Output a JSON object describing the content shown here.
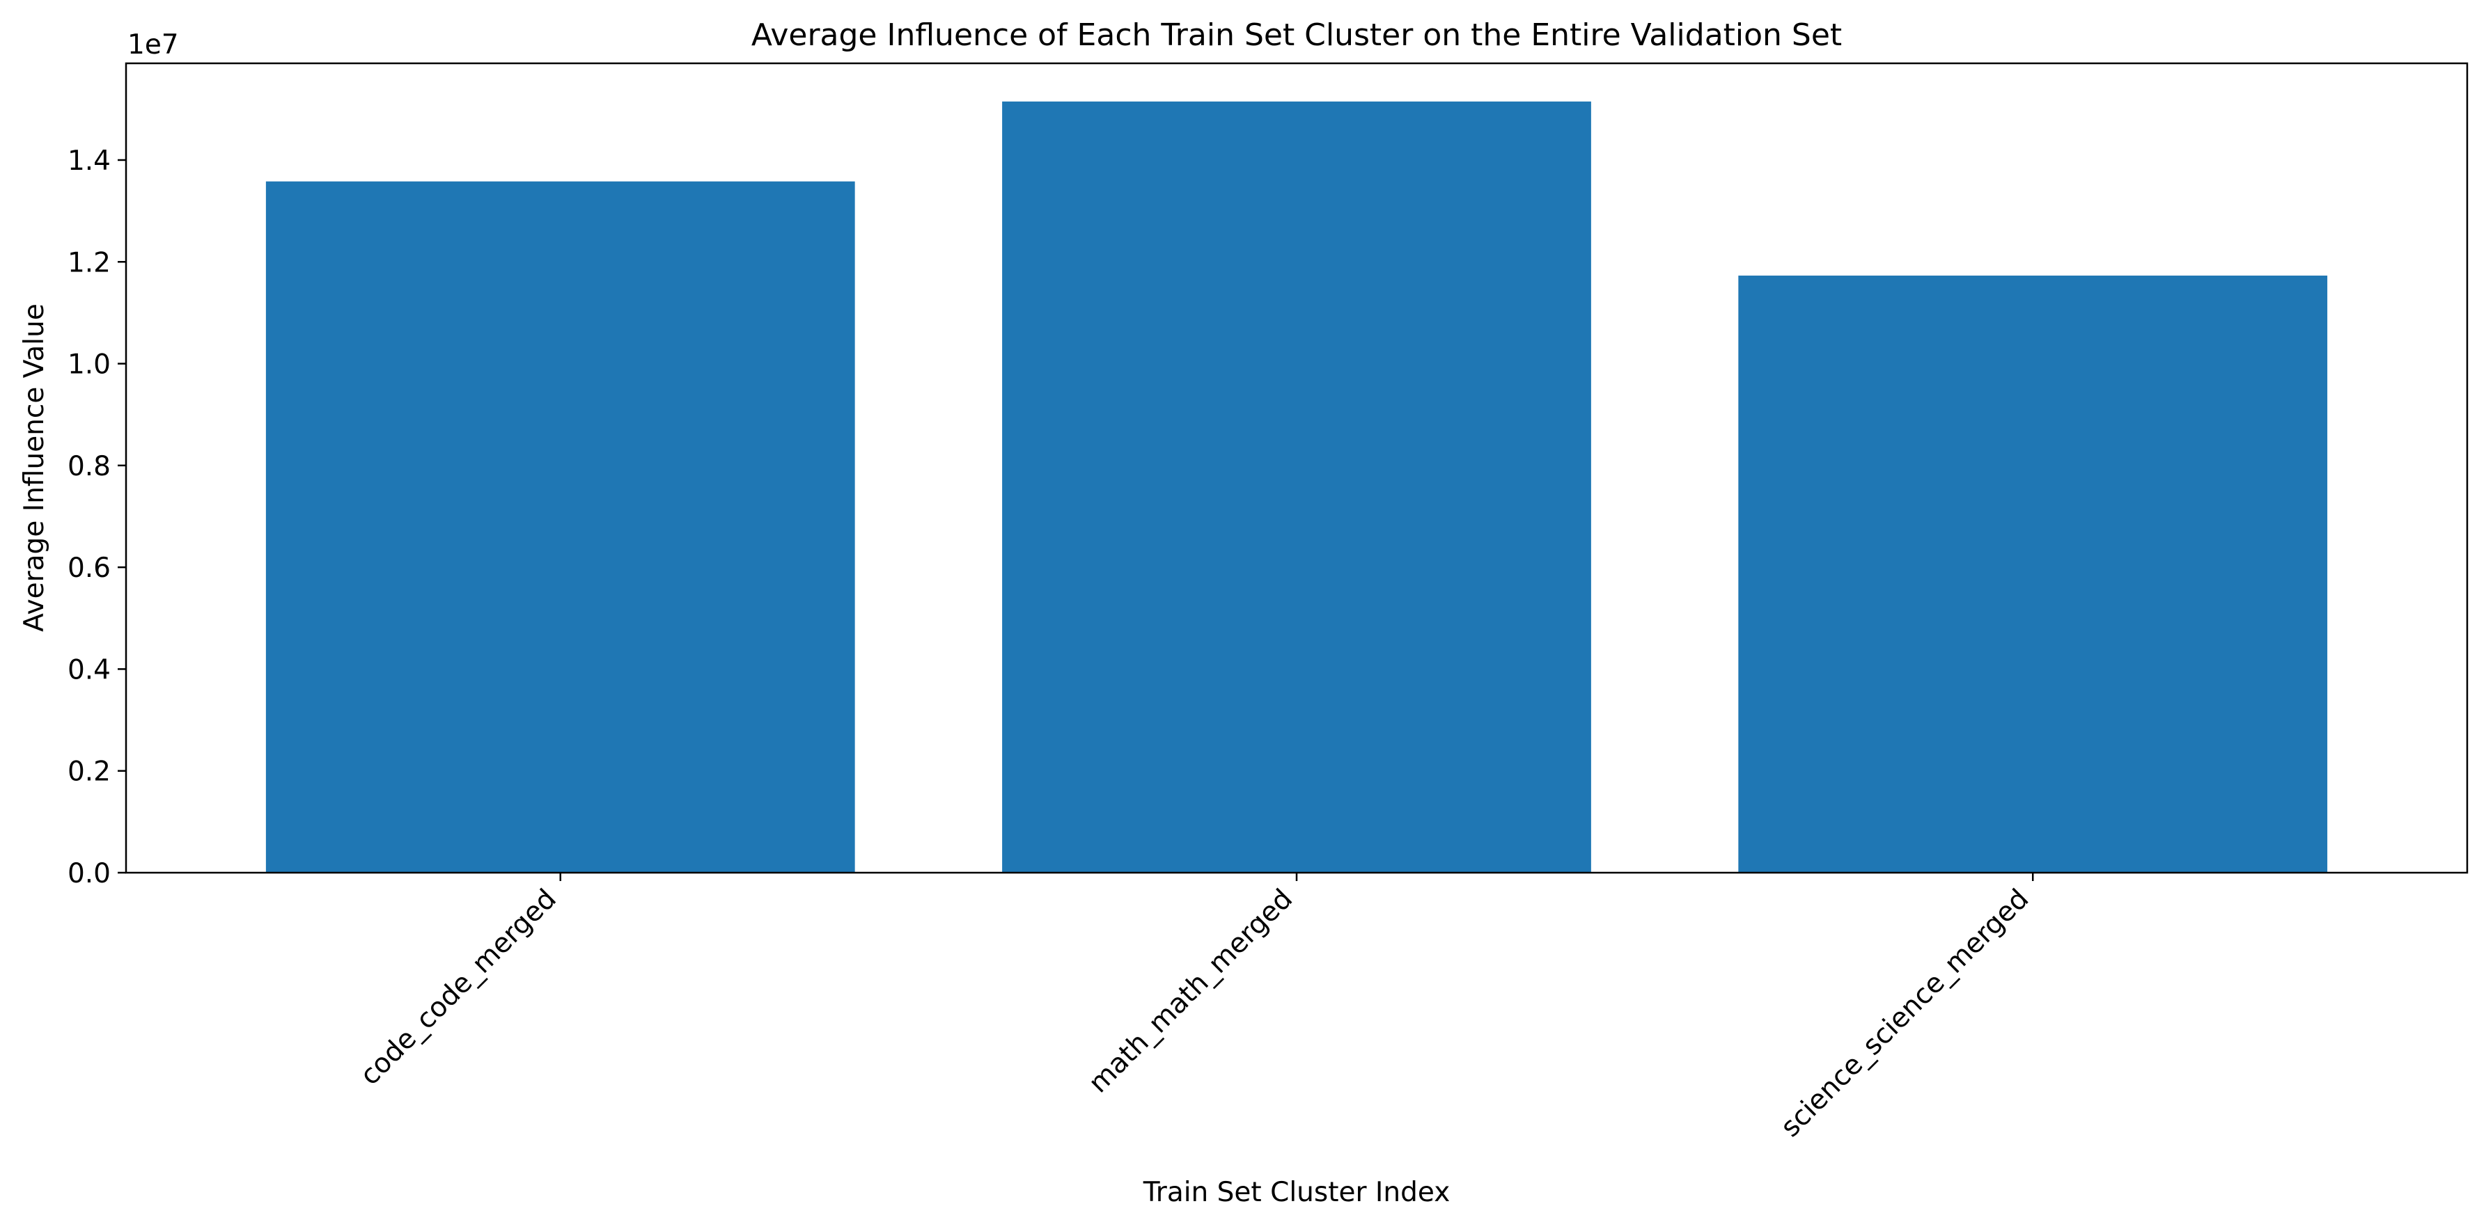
{
  "chart_data": {
    "type": "bar",
    "title": "Average Influence of Each Train Set Cluster on the Entire Validation Set",
    "xlabel": "Train Set Cluster Index",
    "ylabel": "Average Influence Value",
    "y_offset_label": "1e7",
    "categories": [
      "code_code_merged",
      "math_math_merged",
      "science_science_merged"
    ],
    "values": [
      13580000,
      15150000,
      11730000
    ],
    "ylim": [
      0,
      15900000
    ],
    "yticks": [
      0,
      2000000,
      4000000,
      6000000,
      8000000,
      10000000,
      12000000,
      14000000
    ],
    "ytick_labels": [
      "0.0",
      "0.2",
      "0.4",
      "0.6",
      "0.8",
      "1.0",
      "1.2",
      "1.4"
    ],
    "bar_color": "#1f77b4",
    "grid": false,
    "legend": "none"
  }
}
